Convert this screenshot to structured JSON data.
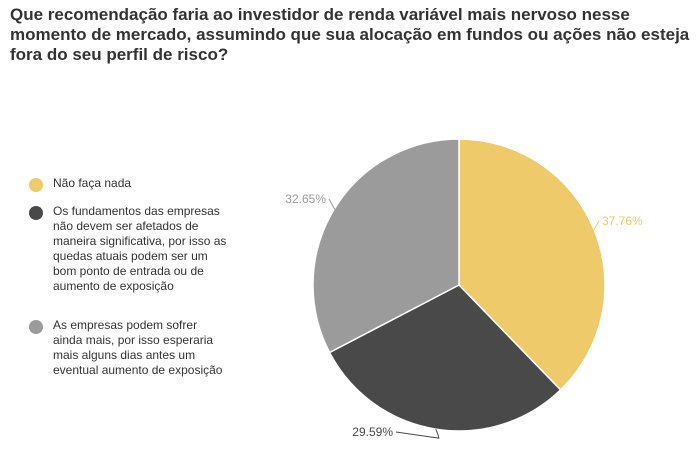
{
  "chart_data": {
    "type": "pie",
    "title": "Que recomendação faria ao investidor de renda variável mais nervoso nesse momento de mercado, assumindo que sua alocação em fundos ou ações não esteja fora do seu perfil de risco?",
    "legend_position": "left",
    "slices": [
      {
        "label": "Não faça nada",
        "value": 37.76,
        "display": "37.76%",
        "color": "#efca6b"
      },
      {
        "label": "Os fundamentos das empresas não devem ser afetados de maneira significativa, por isso as quedas atuais podem ser um bom ponto de entrada ou de aumento de exposição",
        "value": 29.59,
        "display": "29.59%",
        "color": "#494949"
      },
      {
        "label": "As empresas podem sofrer ainda mais, por isso esperaria mais alguns dias antes um eventual aumento de exposição",
        "value": 32.65,
        "display": "32.65%",
        "color": "#9b9b9b"
      }
    ]
  }
}
